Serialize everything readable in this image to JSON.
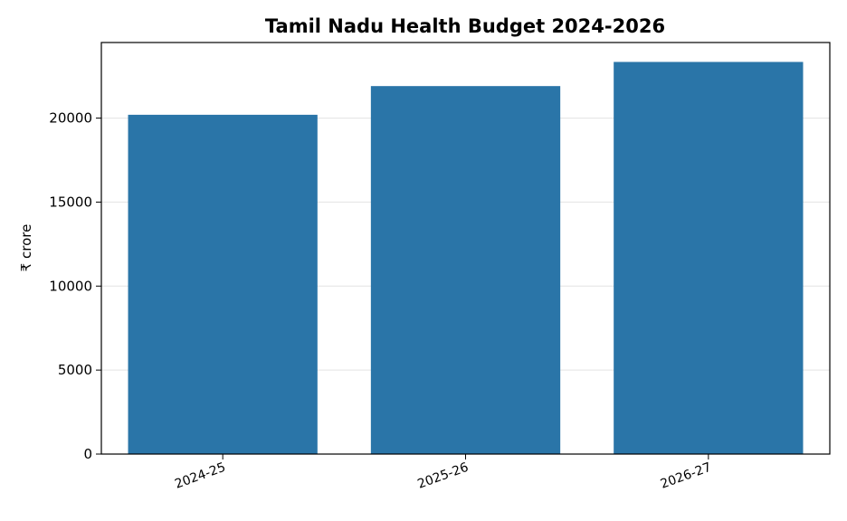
{
  "chart_data": {
    "type": "bar",
    "title": "Tamil Nadu Health Budget 2024-2026",
    "xlabel": "",
    "ylabel": "₹ crore",
    "categories": [
      "2024-25",
      "2025-26",
      "2026-27"
    ],
    "values": [
      20198,
      21906,
      23344
    ],
    "ylim": [
      0,
      24500
    ],
    "yticks": [
      0,
      5000,
      10000,
      15000,
      20000
    ],
    "grid": true,
    "legend": "none",
    "colors": {
      "bar": "#2a75a8",
      "grid": "#e3e3e3",
      "axis": "#000000"
    }
  }
}
